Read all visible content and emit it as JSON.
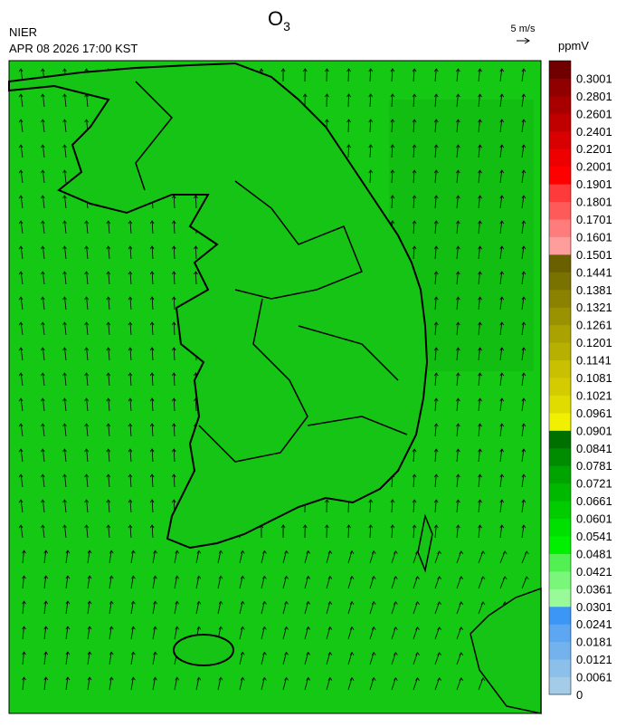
{
  "header": {
    "title": "O",
    "title_subscript": "3",
    "agency": "NIER",
    "timestamp": "APR 08 2026 17:00 KST",
    "wind_scale": "5 m/s"
  },
  "colorbar": {
    "unit": "ppmV",
    "labels": [
      "0",
      "0.0061",
      "0.0121",
      "0.0181",
      "0.0241",
      "0.0301",
      "0.0361",
      "0.0421",
      "0.0481",
      "0.0541",
      "0.0601",
      "0.0661",
      "0.0721",
      "0.0781",
      "0.0841",
      "0.0901",
      "0.0961",
      "0.1021",
      "0.1081",
      "0.1141",
      "0.1201",
      "0.1261",
      "0.1321",
      "0.1381",
      "0.1441",
      "0.1501",
      "0.1601",
      "0.1701",
      "0.1801",
      "0.1901",
      "0.2001",
      "0.2201",
      "0.2401",
      "0.2601",
      "0.2801",
      "0.3001"
    ],
    "colors": [
      "#a4cce8",
      "#8cc0ea",
      "#74b2ee",
      "#5ca6f2",
      "#3c96f6",
      "#98fa98",
      "#7af77a",
      "#52f052",
      "#00f000",
      "#00e000",
      "#00cc00",
      "#00b800",
      "#00a400",
      "#008c00",
      "#007000",
      "#f0f000",
      "#e0dc00",
      "#d4cc00",
      "#c8c000",
      "#b8b000",
      "#aaa200",
      "#9a9200",
      "#8a8200",
      "#7a7200",
      "#6a6000",
      "#ff9c9c",
      "#ff7c7c",
      "#ff5a5a",
      "#ff3a3a",
      "#ff0000",
      "#ee0000",
      "#d80000",
      "#c00000",
      "#a80000",
      "#900000",
      "#700000"
    ]
  }
}
